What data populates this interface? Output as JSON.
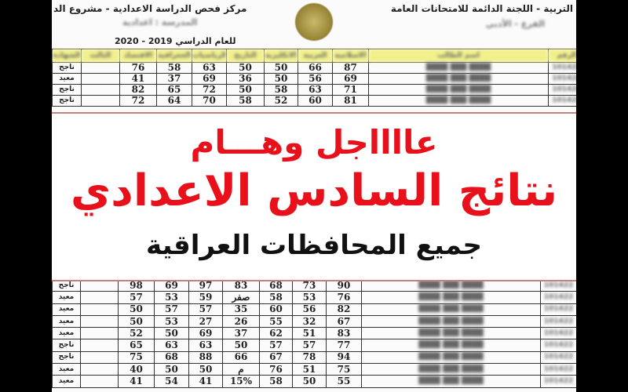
{
  "header": {
    "ministry_line": "التربية - اللجنة الدائمة للامتحانات العامة",
    "center_line": "مركز فحص الدراسة الاعدادية - مشروع الد",
    "school_line": "المدرسة : اعدادية",
    "branch_line": "الفرع - الأدبي",
    "year_label": "للعام الدراسي 2019 - 2020"
  },
  "columns": [
    "الشهادة",
    "الثالث",
    "الاقتصاد",
    "الجغرافية",
    "الرياضيات",
    "التاريخ",
    "الانكليزية",
    "العربية",
    "الاسلامية",
    "اسم الطالب",
    "الرقم"
  ],
  "top_rows": [
    {
      "result": "ناجح",
      "scores": [
        "76",
        "58",
        "63",
        "50",
        "50",
        "66",
        "87"
      ],
      "name": "████ ███ ████",
      "id": "101422"
    },
    {
      "result": "معيد",
      "scores": [
        "41",
        "37",
        "69",
        "36",
        "50",
        "56",
        "69"
      ],
      "name": "████ ███ ████",
      "id": "101422"
    },
    {
      "result": "ناجح",
      "scores": [
        "82",
        "65",
        "72",
        "50",
        "58",
        "63",
        "71"
      ],
      "name": "████ ███ ████",
      "id": "101422"
    },
    {
      "result": "ناجح",
      "scores": [
        "72",
        "64",
        "70",
        "58",
        "52",
        "60",
        "81"
      ],
      "name": "████ ███ ████",
      "id": "101422"
    }
  ],
  "bottom_rows": [
    {
      "result": "ناجح",
      "scores": [
        "98",
        "69",
        "97",
        "83",
        "68",
        "73",
        "90"
      ],
      "name": "████ ███ ████",
      "id": "101422"
    },
    {
      "result": "معيد",
      "scores": [
        "57",
        "53",
        "59",
        "صفر",
        "58",
        "53",
        "76"
      ],
      "name": "████ ███ ████",
      "id": "101422"
    },
    {
      "result": "معيد",
      "scores": [
        "50",
        "57",
        "57",
        "35",
        "60",
        "56",
        "82"
      ],
      "name": "████ ███ ████",
      "id": "101422"
    },
    {
      "result": "معيد",
      "scores": [
        "50",
        "53",
        "27",
        "26",
        "55",
        "32",
        "67"
      ],
      "name": "████ ███ ████",
      "id": "101422"
    },
    {
      "result": "معيد",
      "scores": [
        "52",
        "50",
        "69",
        "37",
        "62",
        "51",
        "83"
      ],
      "name": "████ ███ ████",
      "id": "101422"
    },
    {
      "result": "ناجح",
      "scores": [
        "65",
        "63",
        "63",
        "50",
        "57",
        "57",
        "77"
      ],
      "name": "████ ███ ████",
      "id": "101422"
    },
    {
      "result": "ناجح",
      "scores": [
        "75",
        "68",
        "88",
        "66",
        "67",
        "78",
        "94"
      ],
      "name": "████ ███ ████",
      "id": "101422"
    },
    {
      "result": "معيد",
      "scores": [
        "40",
        "50",
        "50",
        "م",
        "76",
        "51",
        "75"
      ],
      "name": "████ ███ ████",
      "id": "101422"
    },
    {
      "result": "معيد",
      "scores": [
        "41",
        "54",
        "41",
        "15%",
        "58",
        "50",
        "55"
      ],
      "name": "████ ███ ████",
      "id": "101422"
    }
  ],
  "banner": {
    "line1": "عااااجل وهـــام",
    "line2": "نتائج السادس الاعدادي",
    "line3": "جميع المحافظات العراقية",
    "accent_color": "#e8101a"
  },
  "seal_icon": "ministry-seal"
}
